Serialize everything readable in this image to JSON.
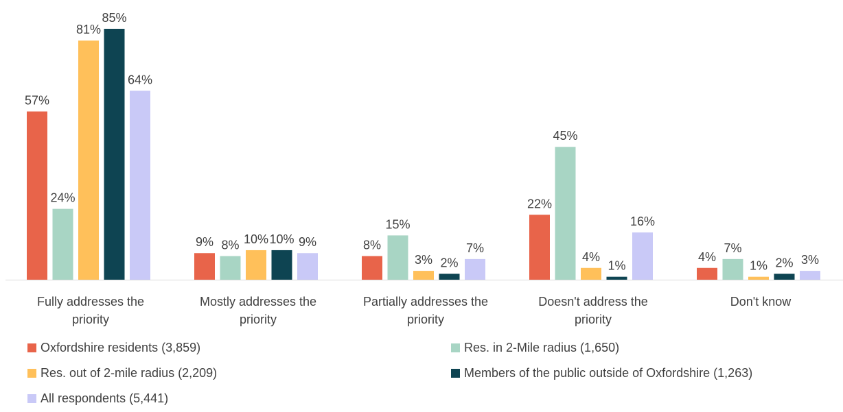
{
  "chart_data": {
    "type": "bar",
    "categories": [
      [
        "Fully addresses the",
        "priority"
      ],
      [
        "Mostly addresses the",
        "priority"
      ],
      [
        "Partially addresses the",
        "priority"
      ],
      [
        "Doesn't address the",
        "priority"
      ],
      [
        "Don't know"
      ]
    ],
    "series": [
      {
        "name": "Oxfordshire residents (3,859)",
        "values": [
          57,
          9,
          8,
          22,
          4
        ],
        "color": "#E8644A"
      },
      {
        "name": "Res. in 2-Mile radius (1,650)",
        "values": [
          24,
          8,
          15,
          45,
          7
        ],
        "color": "#A8D5C4"
      },
      {
        "name": "Res. out of 2-mile radius (2,209)",
        "values": [
          81,
          10,
          3,
          4,
          1
        ],
        "color": "#FFC05A"
      },
      {
        "name": "Members of the public outside of Oxfordshire (1,263)",
        "values": [
          85,
          10,
          2,
          1,
          2
        ],
        "color": "#0E4452"
      },
      {
        "name": "All respondents (5,441)",
        "values": [
          64,
          9,
          7,
          16,
          3
        ],
        "color": "#C9C9F7"
      }
    ],
    "value_suffix": "%",
    "ylim": [
      0,
      85
    ],
    "grid": false,
    "legend_position": "bottom",
    "axis_color": "#D9D9D9"
  }
}
